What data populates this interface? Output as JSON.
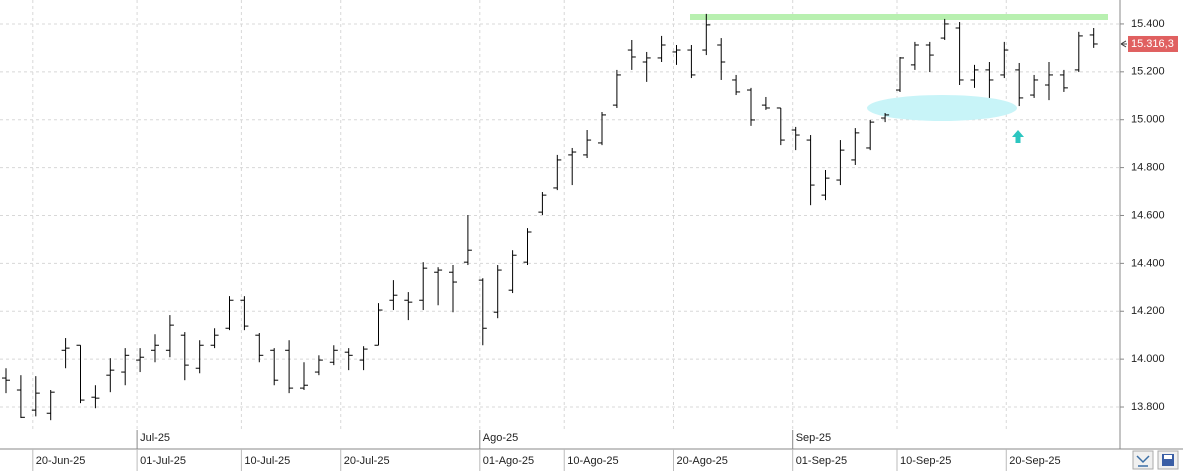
{
  "chart_data": {
    "type": "ohlc",
    "x": [
      "2025-06-18",
      "2025-06-19",
      "2025-06-20",
      "2025-06-23",
      "2025-06-24",
      "2025-06-25",
      "2025-06-26",
      "2025-06-27",
      "2025-06-30",
      "2025-07-01",
      "2025-07-02",
      "2025-07-03",
      "2025-07-04",
      "2025-07-07",
      "2025-07-08",
      "2025-07-09",
      "2025-07-10",
      "2025-07-11",
      "2025-07-14",
      "2025-07-15",
      "2025-07-16",
      "2025-07-17",
      "2025-07-18",
      "2025-07-21",
      "2025-07-22",
      "2025-07-23",
      "2025-07-24",
      "2025-07-25",
      "2025-07-28",
      "2025-07-29",
      "2025-07-30",
      "2025-07-31",
      "2025-08-01",
      "2025-08-04",
      "2025-08-05",
      "2025-08-06",
      "2025-08-07",
      "2025-08-08",
      "2025-08-11",
      "2025-08-12",
      "2025-08-13",
      "2025-08-14",
      "2025-08-15",
      "2025-08-18",
      "2025-08-19",
      "2025-08-20",
      "2025-08-21",
      "2025-08-22",
      "2025-08-25",
      "2025-08-26",
      "2025-08-27",
      "2025-08-28",
      "2025-08-29",
      "2025-09-01",
      "2025-09-02",
      "2025-09-03",
      "2025-09-04",
      "2025-09-05",
      "2025-09-08",
      "2025-09-09",
      "2025-09-10",
      "2025-09-11",
      "2025-09-12",
      "2025-09-15",
      "2025-09-16",
      "2025-09-17",
      "2025-09-18",
      "2025-09-19",
      "2025-09-22",
      "2025-09-23",
      "2025-09-24",
      "2025-09-25",
      "2025-09-26",
      "2025-09-29"
    ],
    "open": [
      13921,
      13871,
      13787,
      13774,
      14037,
      14058,
      13841,
      13933,
      13946,
      13996,
      14037,
      14037,
      14100,
      13962,
      14058,
      14129,
      14246,
      14100,
      14037,
      14037,
      13879,
      13946,
      13987,
      14029,
      13996,
      14058,
      14246,
      14246,
      14246,
      14363,
      14363,
      14405,
      14330,
      14196,
      14288,
      14405,
      14614,
      14715,
      14853,
      14853,
      14903,
      15061,
      15291,
      15241,
      15258,
      15283,
      15291,
      15291,
      15312,
      15166,
      15124,
      15061,
      15049,
      14957,
      14915,
      14685,
      14748,
      14832,
      14882,
      15007,
      15124,
      15229,
      15312,
      15341,
      15383,
      15166,
      15208,
      15187,
      15208,
      15103,
      15145,
      15187,
      15208,
      15354
    ],
    "high": [
      13962,
      13933,
      13929,
      13871,
      14088,
      14058,
      13891,
      14004,
      14046,
      14046,
      14104,
      14184,
      14113,
      14079,
      14129,
      14263,
      14263,
      14109,
      14046,
      14079,
      13987,
      14016,
      14058,
      14046,
      14054,
      14234,
      14330,
      14280,
      14405,
      14384,
      14393,
      14602,
      14338,
      14393,
      14455,
      14547,
      14698,
      14853,
      14882,
      14957,
      15032,
      15208,
      15333,
      15283,
      15350,
      15312,
      15312,
      15442,
      15341,
      15187,
      15133,
      15095,
      15049,
      14970,
      14936,
      14790,
      14915,
      14965,
      14999,
      15028,
      15262,
      15325,
      15325,
      15421,
      15408,
      15229,
      15241,
      15325,
      15237,
      15187,
      15241,
      15208,
      15367,
      15383
    ],
    "low": [
      13858,
      13754,
      13761,
      13745,
      13962,
      13816,
      13795,
      13862,
      13891,
      13946,
      13987,
      14008,
      13912,
      13941,
      14046,
      14121,
      14121,
      13987,
      13891,
      13858,
      13871,
      13933,
      13975,
      13954,
      13954,
      14058,
      14205,
      14163,
      14205,
      14225,
      14196,
      14393,
      14058,
      14171,
      14276,
      14393,
      14602,
      14706,
      14727,
      14840,
      14894,
      15049,
      15208,
      15158,
      15241,
      15229,
      15174,
      15270,
      15166,
      15103,
      14974,
      15041,
      14894,
      14873,
      14643,
      14664,
      14727,
      14811,
      14873,
      14990,
      15116,
      15208,
      15199,
      15333,
      15145,
      15133,
      15091,
      15174,
      15057,
      15091,
      15082,
      15116,
      15199,
      15300
    ],
    "close": [
      13912,
      13757,
      13858,
      13862,
      14046,
      13829,
      13837,
      13954,
      14016,
      14008,
      14058,
      14142,
      13975,
      14058,
      14100,
      14246,
      14138,
      14016,
      13912,
      13879,
      13891,
      13996,
      14037,
      14016,
      14042,
      14205,
      14267,
      14238,
      14380,
      14372,
      14322,
      14455,
      14129,
      14372,
      14434,
      14531,
      14685,
      14832,
      14865,
      14915,
      15020,
      15187,
      15262,
      15258,
      15312,
      15291,
      15187,
      15396,
      15241,
      15116,
      14999,
      15049,
      14915,
      14936,
      14727,
      14756,
      14873,
      14945,
      14990,
      15020,
      15258,
      15312,
      15270,
      15400,
      15166,
      15208,
      15166,
      15291,
      15091,
      15166,
      15187,
      15133,
      15350,
      15316.3
    ],
    "color": "#000000",
    "ylim": [
      13633,
      15500
    ],
    "yticks": [
      {
        "value": 13800,
        "label": "13.800"
      },
      {
        "value": 14000,
        "label": "14.000"
      },
      {
        "value": 14200,
        "label": "14.200"
      },
      {
        "value": 14400,
        "label": "14.400"
      },
      {
        "value": 14600,
        "label": "14.600"
      },
      {
        "value": 14800,
        "label": "14.800"
      },
      {
        "value": 15000,
        "label": "15.000"
      },
      {
        "value": 15200,
        "label": "15.200"
      },
      {
        "value": 15400,
        "label": "15.400"
      }
    ],
    "xticks": [
      {
        "value": "2025-06-20",
        "label": "20-Jun-25"
      },
      {
        "value": "2025-07-01",
        "label": "01-Jul-25"
      },
      {
        "value": "2025-07-10",
        "label": "10-Jul-25"
      },
      {
        "value": "2025-07-20",
        "label": "20-Jul-25"
      },
      {
        "value": "2025-08-01",
        "label": "01-Ago-25"
      },
      {
        "value": "2025-08-10",
        "label": "10-Ago-25"
      },
      {
        "value": "2025-08-20",
        "label": "20-Ago-25"
      },
      {
        "value": "2025-09-01",
        "label": "01-Sep-25"
      },
      {
        "value": "2025-09-10",
        "label": "10-Sep-25"
      },
      {
        "value": "2025-09-20",
        "label": "20-Sep-25"
      }
    ],
    "month_ticks": [
      {
        "value": "2025-07-01",
        "label": "Jul-25"
      },
      {
        "value": "2025-08-01",
        "label": "Ago-25"
      },
      {
        "value": "2025-09-01",
        "label": "Sep-25"
      }
    ],
    "last_price": {
      "value": 15316.3,
      "label": "15.316,3",
      "color": "#e06060"
    },
    "grid": true
  }
}
